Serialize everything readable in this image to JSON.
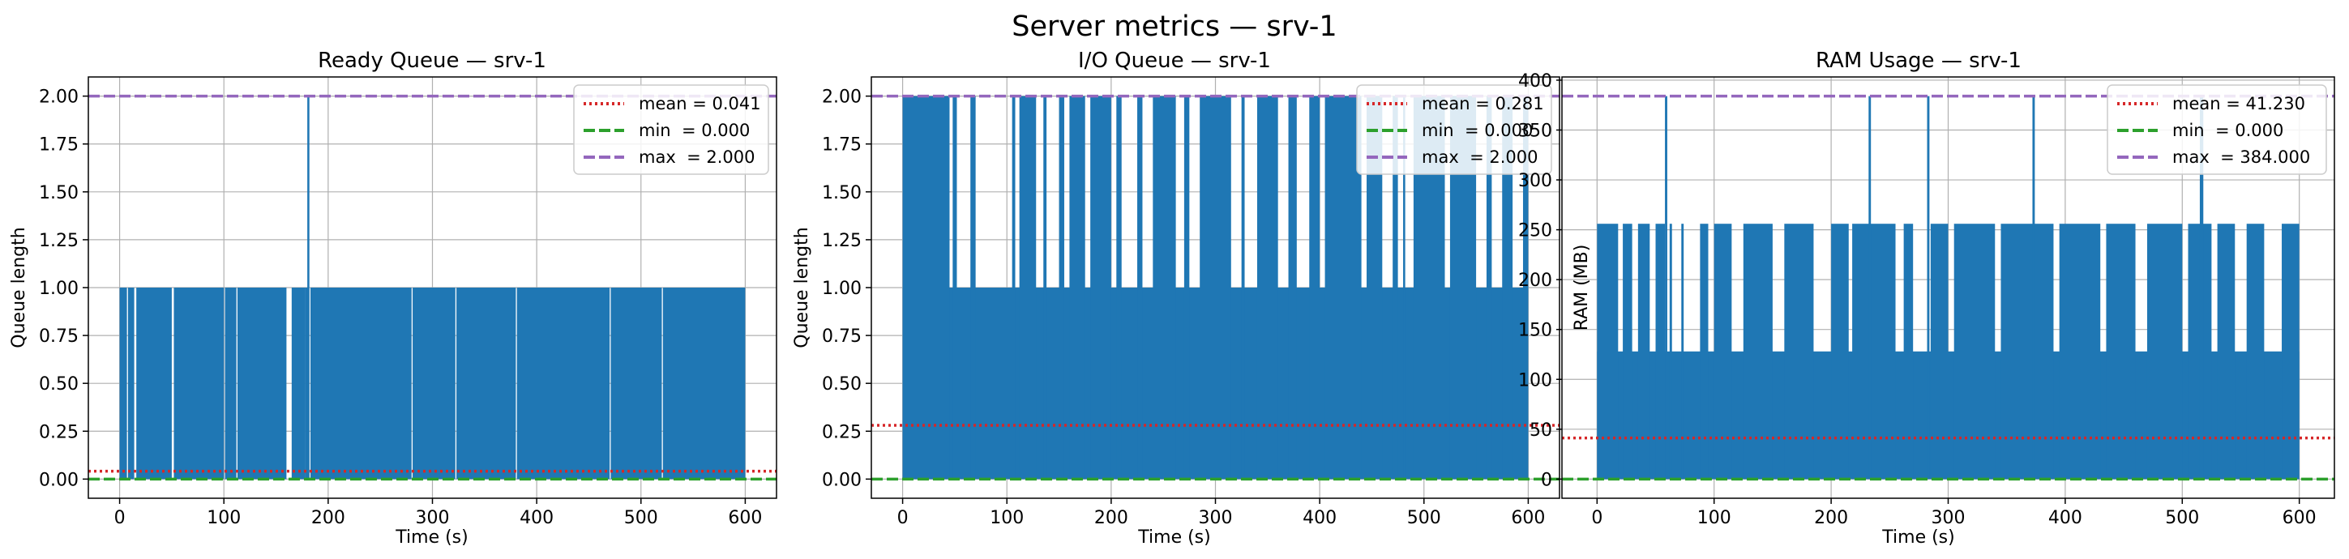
{
  "figure": {
    "title": "Server metrics — srv-1"
  },
  "colors": {
    "data": "#1f77b4",
    "mean": "#d62728",
    "min": "#2ca02c",
    "max": "#9467bd",
    "grid": "#b0b0b0"
  },
  "chart_data": [
    {
      "type": "line",
      "title": "Ready Queue — srv-1",
      "xlabel": "Time (s)",
      "ylabel": "Queue length",
      "xlim": [
        -30,
        630
      ],
      "ylim": [
        -0.1,
        2.1
      ],
      "xticks": [
        0,
        100,
        200,
        300,
        400,
        500,
        600
      ],
      "xtick_labels": [
        "0",
        "100",
        "200",
        "300",
        "400",
        "500",
        "600"
      ],
      "yticks": [
        0,
        0.25,
        0.5,
        0.75,
        1.0,
        1.25,
        1.5,
        1.75,
        2.0
      ],
      "ytick_labels": [
        "0.00",
        "0.25",
        "0.50",
        "0.75",
        "1.00",
        "1.25",
        "1.50",
        "1.75",
        "2.00"
      ],
      "grid": true,
      "legend_position": "top-right",
      "stats": {
        "mean": 0.041,
        "min": 0.0,
        "max": 2.0
      },
      "legend": [
        "mean = 0.041",
        "min  = 0.000",
        "max  = 2.000"
      ],
      "x_range": [
        0,
        600
      ],
      "levels": [
        {
          "value": 1,
          "segments": [
            [
              0,
              7
            ],
            [
              8,
              14
            ],
            [
              16,
              50
            ],
            [
              52,
              100
            ],
            [
              101,
              112
            ],
            [
              113,
              160
            ],
            [
              165,
              178
            ],
            [
              178,
              182
            ],
            [
              183,
              280
            ],
            [
              281,
              322
            ],
            [
              323,
              380
            ],
            [
              381,
              470
            ],
            [
              471,
              520
            ],
            [
              521,
              600
            ]
          ]
        },
        {
          "value": 2,
          "segments": [
            [
              180,
              182
            ]
          ]
        }
      ]
    },
    {
      "type": "line",
      "title": "I/O Queue — srv-1",
      "xlabel": "Time (s)",
      "ylabel": "Queue length",
      "xlim": [
        -30,
        630
      ],
      "ylim": [
        -0.1,
        2.1
      ],
      "xticks": [
        0,
        100,
        200,
        300,
        400,
        500,
        600
      ],
      "xtick_labels": [
        "0",
        "100",
        "200",
        "300",
        "400",
        "500",
        "600"
      ],
      "yticks": [
        0,
        0.25,
        0.5,
        0.75,
        1.0,
        1.25,
        1.5,
        1.75,
        2.0
      ],
      "ytick_labels": [
        "0.00",
        "0.25",
        "0.50",
        "0.75",
        "1.00",
        "1.25",
        "1.50",
        "1.75",
        "2.00"
      ],
      "grid": true,
      "legend_position": "top-right",
      "stats": {
        "mean": 0.281,
        "min": 0.0,
        "max": 2.0
      },
      "legend": [
        "mean = 0.281",
        "min  = 0.000",
        "max  = 2.000"
      ],
      "x_range": [
        0,
        600
      ],
      "levels": [
        {
          "value": 1,
          "segments": [
            [
              0,
              600
            ]
          ]
        },
        {
          "value": 2,
          "segments": [
            [
              0,
              45
            ],
            [
              48,
              52
            ],
            [
              65,
              70
            ],
            [
              105,
              108
            ],
            [
              112,
              128
            ],
            [
              135,
              138
            ],
            [
              150,
              155
            ],
            [
              160,
              175
            ],
            [
              180,
              200
            ],
            [
              205,
              210
            ],
            [
              225,
              230
            ],
            [
              240,
              262
            ],
            [
              270,
              275
            ],
            [
              285,
              315
            ],
            [
              325,
              328
            ],
            [
              340,
              360
            ],
            [
              370,
              378
            ],
            [
              390,
              400
            ],
            [
              405,
              440
            ],
            [
              445,
              460
            ],
            [
              470,
              475
            ],
            [
              480,
              482
            ],
            [
              490,
              520
            ],
            [
              525,
              550
            ],
            [
              560,
              565
            ],
            [
              575,
              585
            ],
            [
              595,
              600
            ]
          ]
        }
      ]
    },
    {
      "type": "line",
      "title": "RAM Usage — srv-1",
      "xlabel": "Time (s)",
      "ylabel": "RAM (MB)",
      "xlim": [
        -30,
        630
      ],
      "ylim": [
        -19.2,
        403.2
      ],
      "xticks": [
        0,
        100,
        200,
        300,
        400,
        500,
        600
      ],
      "xtick_labels": [
        "0",
        "100",
        "200",
        "300",
        "400",
        "500",
        "600"
      ],
      "yticks": [
        0,
        50,
        100,
        150,
        200,
        250,
        300,
        350,
        400
      ],
      "ytick_labels": [
        "0",
        "50",
        "100",
        "150",
        "200",
        "250",
        "300",
        "350",
        "400"
      ],
      "grid": true,
      "legend_position": "top-right",
      "stats": {
        "mean": 41.23,
        "min": 0.0,
        "max": 384.0
      },
      "legend": [
        "mean = 41.230",
        "min  = 0.000",
        "max  = 384.000"
      ],
      "x_range": [
        0,
        600
      ],
      "levels": [
        {
          "value": 128,
          "segments": [
            [
              0,
              600
            ]
          ]
        },
        {
          "value": 256,
          "segments": [
            [
              0,
              18
            ],
            [
              22,
              30
            ],
            [
              35,
              45
            ],
            [
              50,
              58
            ],
            [
              62,
              64
            ],
            [
              72,
              74
            ],
            [
              88,
              95
            ],
            [
              100,
              115
            ],
            [
              125,
              150
            ],
            [
              160,
              185
            ],
            [
              200,
              215
            ],
            [
              218,
              255
            ],
            [
              262,
              270
            ],
            [
              285,
              300
            ],
            [
              305,
              340
            ],
            [
              345,
              390
            ],
            [
              395,
              430
            ],
            [
              435,
              460
            ],
            [
              470,
              500
            ],
            [
              505,
              525
            ],
            [
              530,
              545
            ],
            [
              555,
              570
            ],
            [
              585,
              600
            ]
          ]
        },
        {
          "value": 384,
          "segments": [
            [
              58,
              60
            ],
            [
              232,
              234
            ],
            [
              282,
              284
            ],
            [
              372,
              374
            ],
            [
              515,
              518
            ]
          ]
        }
      ]
    }
  ]
}
